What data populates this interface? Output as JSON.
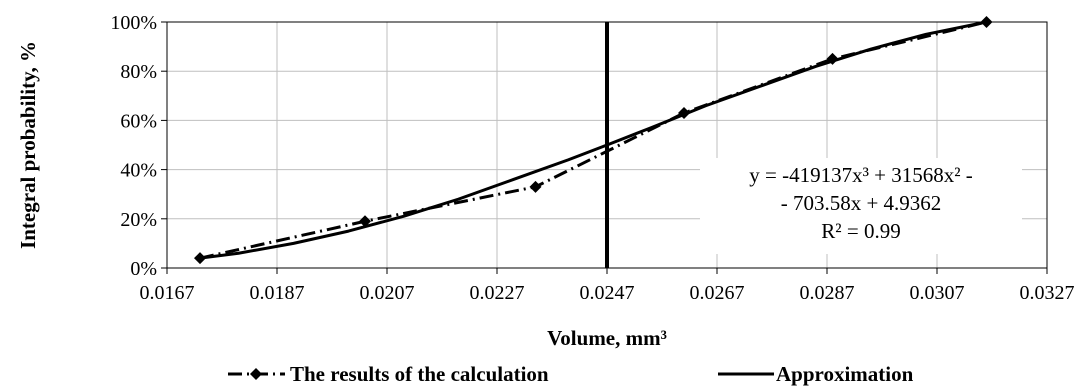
{
  "chart_data": {
    "type": "line",
    "xlabel": "Volume, mm³",
    "ylabel": "Integral probability, %",
    "xlim": [
      0.0167,
      0.0327
    ],
    "ylim": [
      0,
      100
    ],
    "x_ticks": [
      "0.0167",
      "0.0187",
      "0.0207",
      "0.0227",
      "0.0247",
      "0.0267",
      "0.0287",
      "0.0307",
      "0.0327"
    ],
    "y_ticks": [
      "0%",
      "20%",
      "40%",
      "60%",
      "80%",
      "100%"
    ],
    "grid": true,
    "legend_position": "bottom",
    "series": [
      {
        "name": "The results of the calculation",
        "style": "dash-dot with diamond markers",
        "x": [
          0.0173,
          0.0203,
          0.0234,
          0.0261,
          0.0288,
          0.0316
        ],
        "y": [
          4,
          19,
          33,
          63,
          85,
          100
        ]
      },
      {
        "name": "Approximation",
        "style": "solid",
        "x": [
          0.0173,
          0.018,
          0.019,
          0.02,
          0.021,
          0.022,
          0.023,
          0.024,
          0.0247,
          0.0255,
          0.0265,
          0.0275,
          0.0285,
          0.0295,
          0.0305,
          0.0316
        ],
        "y": [
          4,
          6,
          10,
          15,
          21,
          28,
          36,
          44,
          50,
          57,
          66,
          74,
          82,
          89,
          95,
          100
        ]
      }
    ],
    "vertical_line_x": 0.0247,
    "annotation": {
      "lines": [
        "y = -419137x³ + 31568x² -",
        "- 703.58x + 4.9362",
        "R² = 0.99"
      ]
    }
  }
}
